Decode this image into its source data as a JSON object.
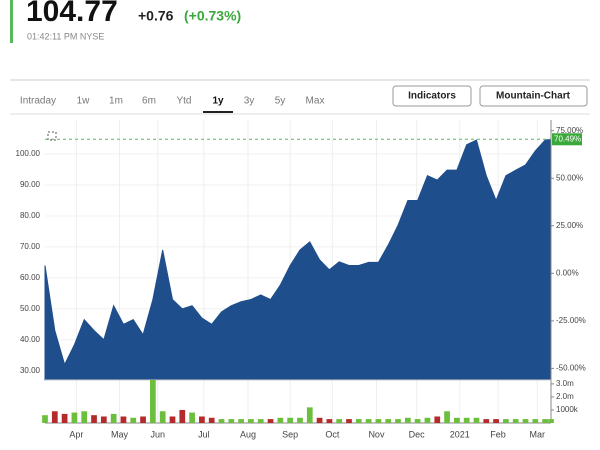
{
  "quote": {
    "price": "104.77",
    "change": "+0.76",
    "change_percent": "(+0.73%)",
    "time": "01:42:11 PM NYSE"
  },
  "tabs": [
    "Intraday",
    "1w",
    "1m",
    "6m",
    "Ytd",
    "1y",
    "3y",
    "5y",
    "Max"
  ],
  "selected_tab": "1y",
  "buttons": [
    "Indicators",
    "Mountain-Chart"
  ],
  "chart_data": {
    "type": "area",
    "color": "#1f4e8c",
    "x": [
      0,
      1,
      2,
      3,
      4,
      5,
      6,
      7,
      8,
      9,
      10,
      11,
      12,
      13,
      14,
      15,
      16,
      17,
      18,
      19,
      20,
      21,
      22,
      23,
      24,
      25,
      26,
      27,
      28,
      29,
      30,
      31,
      32,
      33,
      34,
      35,
      36,
      37,
      38,
      39,
      40,
      41,
      42,
      43,
      44,
      45,
      46,
      47,
      48,
      49,
      50,
      51,
      51.6
    ],
    "values": [
      64,
      43,
      32,
      38.4,
      46.5,
      43,
      40,
      51,
      45,
      46.5,
      41.6,
      53,
      69,
      53,
      50,
      51,
      47,
      45,
      49,
      51,
      52.3,
      53,
      54.5,
      53,
      57.7,
      64,
      69,
      71.6,
      65.8,
      62.6,
      65.2,
      64,
      64,
      65,
      65,
      70.6,
      77,
      85,
      85,
      93,
      91.6,
      94.8,
      94.8,
      103,
      104.5,
      93,
      85,
      93,
      94.8,
      96.5,
      101,
      104.5,
      104.77
    ],
    "xlim": [
      0,
      51.6
    ],
    "xticks": [
      {
        "value": 3.2,
        "label": "Apr"
      },
      {
        "value": 7.6,
        "label": "May"
      },
      {
        "value": 11.5,
        "label": "Jun"
      },
      {
        "value": 16.2,
        "label": "Jul"
      },
      {
        "value": 20.7,
        "label": "Aug"
      },
      {
        "value": 25,
        "label": "Sep"
      },
      {
        "value": 29.3,
        "label": "Oct"
      },
      {
        "value": 33.8,
        "label": "Nov"
      },
      {
        "value": 37.9,
        "label": "Dec"
      },
      {
        "value": 42.3,
        "label": "2021"
      },
      {
        "value": 46.2,
        "label": "Feb"
      },
      {
        "value": 50.2,
        "label": "Mar"
      }
    ],
    "ylim": [
      27,
      111
    ],
    "yticks": [
      {
        "value": 30,
        "label": "30.00"
      },
      {
        "value": 40,
        "label": "40.00"
      },
      {
        "value": 50,
        "label": "50.00"
      },
      {
        "value": 60,
        "label": "60.00"
      },
      {
        "value": 70,
        "label": "70.00"
      },
      {
        "value": 80,
        "label": "80.00"
      },
      {
        "value": 90,
        "label": "90.00"
      },
      {
        "value": 100,
        "label": "100.00"
      }
    ],
    "y2lim": [
      -56.1,
      80.6
    ],
    "y2ticks": [
      {
        "value": -50,
        "label": "-50.00%"
      },
      {
        "value": -25,
        "label": "-25.00%"
      },
      {
        "value": 0,
        "label": "0.00%"
      },
      {
        "value": 25,
        "label": "25.00%"
      },
      {
        "value": 50,
        "label": "50.00%"
      },
      {
        "value": 75,
        "label": "75.00%"
      }
    ],
    "current": {
      "value": 104.77,
      "label": "70.49%"
    },
    "grid": true,
    "volume": {
      "values": [
        0.6,
        0.9,
        0.7,
        0.8,
        0.9,
        0.6,
        0.5,
        0.7,
        0.5,
        0.4,
        0.5,
        3.3,
        0.9,
        0.5,
        1.0,
        0.8,
        0.5,
        0.4,
        0.3,
        0.3,
        0.3,
        0.3,
        0.3,
        0.3,
        0.4,
        0.4,
        0.4,
        1.2,
        0.4,
        0.3,
        0.3,
        0.3,
        0.3,
        0.3,
        0.3,
        0.3,
        0.3,
        0.4,
        0.3,
        0.4,
        0.5,
        0.9,
        0.4,
        0.4,
        0.4,
        0.3,
        0.3,
        0.3,
        0.3,
        0.3,
        0.3,
        0.3,
        0.3
      ],
      "up_color": "#6cbf3c",
      "down_color": "#b52a2a",
      "ylim": [
        0,
        3.3
      ],
      "yticks": [
        {
          "value": 1,
          "label": "1000k"
        },
        {
          "value": 2,
          "label": "2.0m"
        },
        {
          "value": 3,
          "label": "3.0m"
        }
      ]
    }
  }
}
